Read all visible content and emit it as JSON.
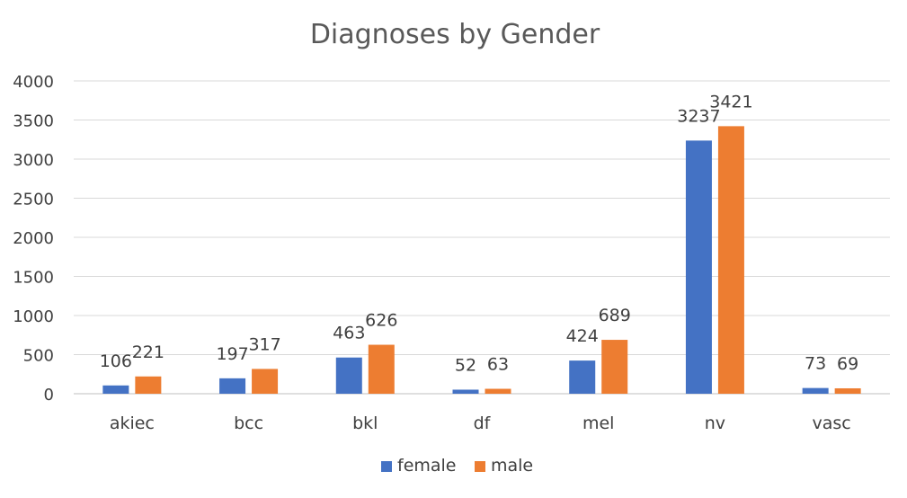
{
  "chart_data": {
    "type": "bar",
    "title": "Diagnoses by Gender",
    "xlabel": "",
    "ylabel": "",
    "categories": [
      "akiec",
      "bcc",
      "bkl",
      "df",
      "mel",
      "nv",
      "vasc"
    ],
    "series": [
      {
        "name": "female",
        "color": "#4472c4",
        "values": [
          106,
          197,
          463,
          52,
          424,
          3237,
          73
        ]
      },
      {
        "name": "male",
        "color": "#ed7d31",
        "values": [
          221,
          317,
          626,
          63,
          689,
          3421,
          69
        ]
      }
    ],
    "ylim": [
      0,
      4000
    ],
    "yticks": [
      "0",
      "500",
      "1000",
      "1500",
      "2000",
      "2500",
      "3000",
      "3500",
      "4000"
    ],
    "grid": true,
    "legend_position": "bottom",
    "data_labels": true
  }
}
